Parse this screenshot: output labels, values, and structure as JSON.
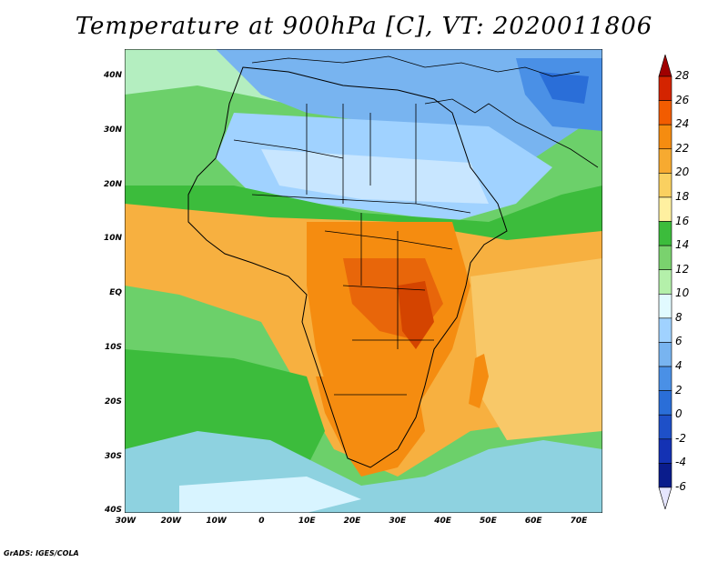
{
  "title": "Temperature at 900hPa [C], VT: 2020011806",
  "credit": "GrADS: IGES/COLA",
  "axes": {
    "lat_labels": [
      "40N",
      "30N",
      "20N",
      "10N",
      "EQ",
      "10S",
      "20S",
      "30S",
      "40S"
    ],
    "lon_labels": [
      "30W",
      "20W",
      "10W",
      "0",
      "10E",
      "20E",
      "30E",
      "40E",
      "50E",
      "60E",
      "70E"
    ]
  },
  "colorbar": {
    "labels": [
      "28",
      "26",
      "24",
      "22",
      "20",
      "18",
      "16",
      "14",
      "12",
      "10",
      "8",
      "6",
      "4",
      "2",
      "0",
      "-2",
      "-4",
      "-6"
    ],
    "colors": [
      "#a00000",
      "#d42400",
      "#f25c00",
      "#f58c10",
      "#f7aa30",
      "#fad060",
      "#fff0a0",
      "#3cbc3c",
      "#7ad26e",
      "#b4f0aa",
      "#e1faff",
      "#a0d2ff",
      "#78b4f0",
      "#4a90e6",
      "#2a6ed8",
      "#1e50c8",
      "#1432b4",
      "#0a1c8c",
      "#e6e6ff"
    ]
  },
  "regions": {
    "ocean_atlantic": "#6fd26a",
    "sahara": "#a0c8f0",
    "mediterranean": "#5a8ee6",
    "sahel": "#f5b040",
    "congo": "#f27a10",
    "indian_ocean": "#f7c060",
    "southern_ocean": "#8ed2e0"
  }
}
